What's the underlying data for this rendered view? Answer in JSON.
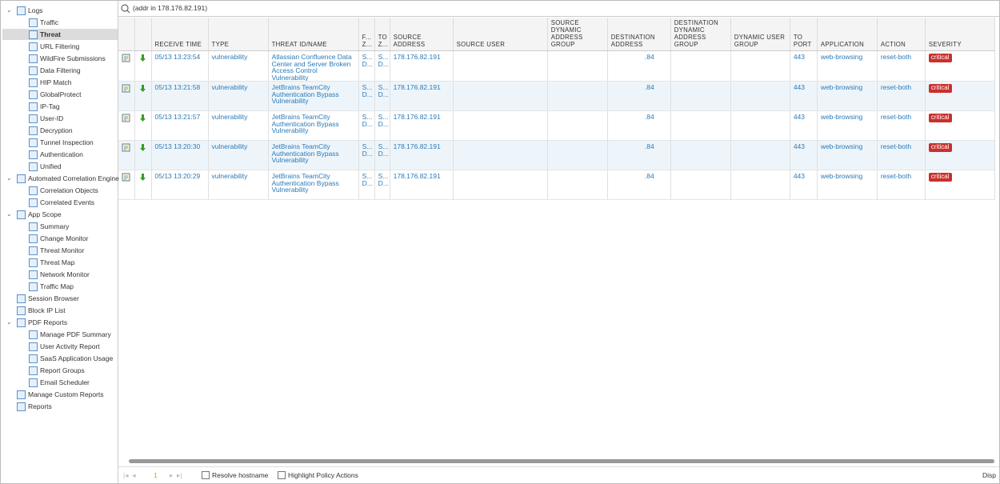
{
  "sidebar": [
    {
      "label": "Logs",
      "children": [
        "Traffic",
        "Threat",
        "URL Filtering",
        "WildFire Submissions",
        "Data Filtering",
        "HIP Match",
        "GlobalProtect",
        "IP-Tag",
        "User-ID",
        "Decryption",
        "Tunnel Inspection",
        "Authentication",
        "Unified"
      ]
    },
    {
      "label": "Automated Correlation Engine",
      "children": [
        "Correlation Objects",
        "Correlated Events"
      ]
    },
    {
      "label": "App Scope",
      "children": [
        "Summary",
        "Change Monitor",
        "Threat Monitor",
        "Threat Map",
        "Network Monitor",
        "Traffic Map"
      ]
    },
    {
      "label": "Session Browser"
    },
    {
      "label": "Block IP List"
    },
    {
      "label": "PDF Reports",
      "children": [
        "Manage PDF Summary",
        "User Activity Report",
        "SaaS Application Usage",
        "Report Groups",
        "Email Scheduler"
      ]
    },
    {
      "label": "Manage Custom Reports"
    },
    {
      "label": "Reports"
    }
  ],
  "search": "(addr in 178.176.82.191)",
  "table": {
    "headers": [
      "RECEIVE TIME",
      "TYPE",
      "THREAT ID/NAME",
      "F... Z...",
      "TO Z...",
      "SOURCE ADDRESS",
      "SOURCE USER",
      "SOURCE DYNAMIC ADDRESS GROUP",
      "DESTINATION ADDRESS",
      "DESTINATION DYNAMIC ADDRESS GROUP",
      "DYNAMIC USER GROUP",
      "TO PORT",
      "APPLICATION",
      "ACTION",
      "SEVERITY"
    ],
    "rows": [
      [
        "05/13 13:23:54",
        "vulnerability",
        "Atlassian Confluence Data Center and Server Broken Access Control Vulnerability",
        "S... D...",
        "S... D...",
        "178.176.82.191",
        null,
        null,
        ".84",
        null,
        null,
        "443",
        "web-browsing",
        "reset-both",
        "critical"
      ],
      [
        "05/13 13:21:58",
        "vulnerability",
        "JetBrains TeamCity Authentication Bypass Vulnerability",
        "S... D...",
        "S... D...",
        "178.176.82.191",
        null,
        null,
        ".84",
        null,
        null,
        "443",
        "web-browsing",
        "reset-both",
        "critical"
      ],
      [
        "05/13 13:21:57",
        "vulnerability",
        "JetBrains TeamCity Authentication Bypass Vulnerability",
        "S... D...",
        "S... D...",
        "178.176.82.191",
        null,
        null,
        ".84",
        null,
        null,
        "443",
        "web-browsing",
        "reset-both",
        "critical"
      ],
      [
        "05/13 13:20:30",
        "vulnerability",
        "JetBrains TeamCity Authentication Bypass Vulnerability",
        "S... D...",
        "S... D...",
        "178.176.82.191",
        null,
        null,
        ".84",
        null,
        null,
        "443",
        "web-browsing",
        "reset-both",
        "critical"
      ],
      [
        "05/13 13:20:29",
        "vulnerability",
        "JetBrains TeamCity Authentication Bypass Vulnerability",
        "S... D...",
        "S... D...",
        "178.176.82.191",
        null,
        null,
        ".84",
        null,
        null,
        "443",
        "web-browsing",
        "reset-both",
        "critical"
      ]
    ]
  },
  "footer": {
    "page": "1",
    "resolve": "Resolve hostname",
    "highlight": "Highlight Policy Actions",
    "display": "Disp"
  }
}
